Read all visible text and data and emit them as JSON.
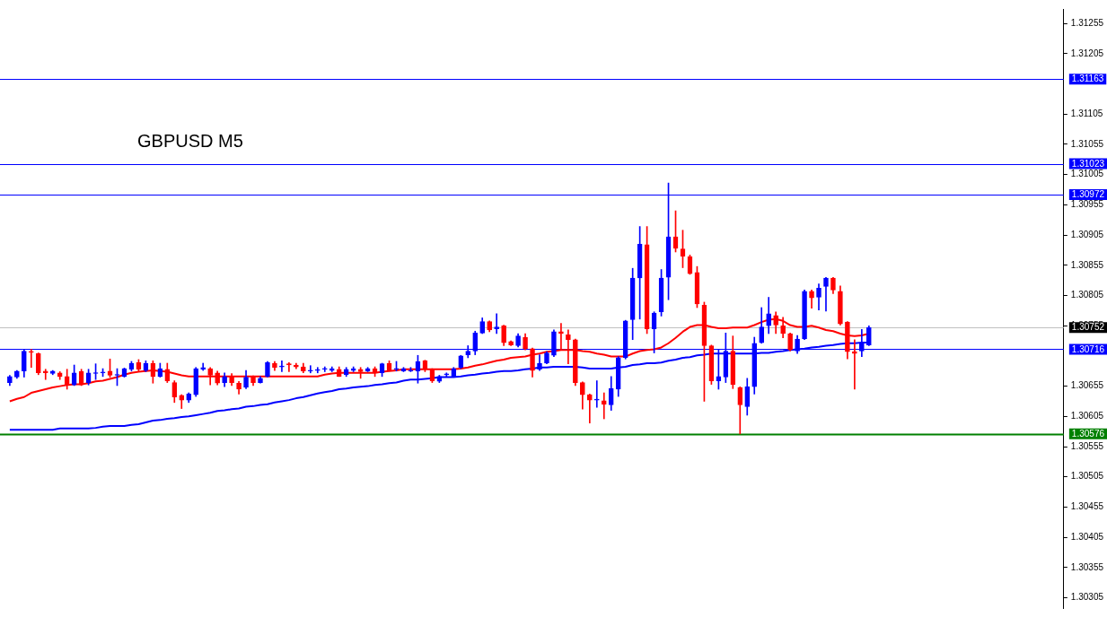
{
  "chart_data": {
    "type": "candlestick",
    "title": "GBPUSD M5",
    "tick_labels": "y",
    "categories": [
      null,
      null,
      null,
      null,
      null,
      null,
      null,
      null,
      null,
      null,
      null,
      null,
      null,
      null,
      null,
      null,
      null,
      null,
      null,
      null,
      null,
      null,
      null,
      null,
      null,
      null,
      null,
      null,
      null,
      null,
      null,
      null,
      null,
      null,
      null,
      null,
      null,
      null,
      null,
      null,
      null,
      null,
      null,
      null,
      null,
      null,
      null,
      null,
      null,
      null,
      null,
      null,
      null,
      null,
      null,
      null,
      null,
      null,
      null,
      null,
      null,
      null,
      null,
      null,
      null,
      null,
      null,
      null,
      null,
      null,
      null,
      null,
      null,
      null,
      null,
      null,
      null,
      null,
      null,
      null,
      null,
      null,
      null,
      null,
      null,
      null,
      null,
      null,
      null,
      null,
      null,
      null,
      null,
      null,
      null,
      null,
      null,
      null,
      null,
      null,
      null,
      null,
      null,
      null,
      null,
      null,
      null,
      null,
      null,
      null,
      null,
      null,
      null,
      null,
      null,
      null,
      null,
      null,
      null,
      null,
      null
    ],
    "ohlc": [
      [
        1.30661,
        1.30673,
        1.30656,
        1.30671
      ],
      [
        1.3067,
        1.30681,
        1.30668,
        1.3068
      ],
      [
        1.3068,
        1.30715,
        1.3067,
        1.30713
      ],
      [
        1.30712,
        1.30716,
        1.30686,
        1.30711
      ],
      [
        1.30709,
        1.3071,
        1.30674,
        1.30677
      ],
      [
        1.3068,
        1.30683,
        1.30666,
        1.30677
      ],
      [
        1.30676,
        1.30681,
        1.30674,
        1.3068
      ],
      [
        1.30677,
        1.30679,
        1.30666,
        1.30671
      ],
      [
        1.30671,
        1.30683,
        1.3065,
        1.30657
      ],
      [
        1.30657,
        1.3069,
        1.30656,
        1.30677
      ],
      [
        1.30679,
        1.30683,
        1.30656,
        1.30657
      ],
      [
        1.30661,
        1.30683,
        1.30657,
        1.30677
      ],
      [
        1.30676,
        1.30692,
        1.30666,
        1.30677
      ],
      [
        1.30677,
        1.30684,
        1.30671,
        1.30678
      ],
      [
        1.3068,
        1.307,
        1.3067,
        1.30673
      ],
      [
        1.30673,
        1.30684,
        1.30656,
        1.30674
      ],
      [
        1.30671,
        1.30685,
        1.3067,
        1.30684
      ],
      [
        1.30683,
        1.30696,
        1.3068,
        1.30693
      ],
      [
        1.30694,
        1.30699,
        1.3068,
        1.30683
      ],
      [
        1.30681,
        1.30697,
        1.30679,
        1.30693
      ],
      [
        1.30693,
        1.30697,
        1.3066,
        1.30671
      ],
      [
        1.30671,
        1.30693,
        1.3067,
        1.30684
      ],
      [
        1.30683,
        1.30693,
        1.30661,
        1.30664
      ],
      [
        1.30661,
        1.30664,
        1.30628,
        1.30637
      ],
      [
        1.3064,
        1.30641,
        1.30618,
        1.30632
      ],
      [
        1.30632,
        1.30644,
        1.30628,
        1.30642
      ],
      [
        1.30641,
        1.30686,
        1.30638,
        1.30684
      ],
      [
        1.30683,
        1.30693,
        1.30681,
        1.30686
      ],
      [
        1.30684,
        1.30686,
        1.30657,
        1.30673
      ],
      [
        1.30677,
        1.3068,
        1.30657,
        1.3066
      ],
      [
        1.30661,
        1.30677,
        1.30654,
        1.30671
      ],
      [
        1.30671,
        1.30676,
        1.30656,
        1.30661
      ],
      [
        1.3066,
        1.30663,
        1.30642,
        1.3065
      ],
      [
        1.30653,
        1.30681,
        1.30651,
        1.3067
      ],
      [
        1.30671,
        1.30672,
        1.30656,
        1.30661
      ],
      [
        1.30661,
        1.30671,
        1.3066,
        1.30668
      ],
      [
        1.30671,
        1.30696,
        1.3067,
        1.30694
      ],
      [
        1.30693,
        1.30696,
        1.30681,
        1.30686
      ],
      [
        1.30687,
        1.30697,
        1.30679,
        1.30688
      ],
      [
        1.30692,
        1.30694,
        1.30679,
        1.3069
      ],
      [
        1.3069,
        1.30693,
        1.30684,
        1.30687
      ],
      [
        1.30687,
        1.30693,
        1.30677,
        1.3068
      ],
      [
        1.3068,
        1.30689,
        1.30677,
        1.30681
      ],
      [
        1.30681,
        1.30686,
        1.30677,
        1.30682
      ],
      [
        1.30683,
        1.30687,
        1.30679,
        1.30684
      ],
      [
        1.30681,
        1.30687,
        1.30679,
        1.30684
      ],
      [
        1.30683,
        1.30687,
        1.30671,
        1.30671
      ],
      [
        1.30674,
        1.30686,
        1.30671,
        1.30683
      ],
      [
        1.30681,
        1.30687,
        1.30679,
        1.30684
      ],
      [
        1.30683,
        1.30686,
        1.30668,
        1.30679
      ],
      [
        1.3068,
        1.30686,
        1.30679,
        1.30684
      ],
      [
        1.30684,
        1.30687,
        1.30671,
        1.30677
      ],
      [
        1.30677,
        1.30693,
        1.30671,
        1.30692
      ],
      [
        1.30693,
        1.30697,
        1.3068,
        1.30681
      ],
      [
        1.30683,
        1.30696,
        1.3068,
        1.30684
      ],
      [
        1.3068,
        1.30686,
        1.30679,
        1.30684
      ],
      [
        1.3068,
        1.30686,
        1.30679,
        1.30681
      ],
      [
        1.3068,
        1.30706,
        1.3066,
        1.30696
      ],
      [
        1.30697,
        1.30698,
        1.30679,
        1.30683
      ],
      [
        1.30683,
        1.30684,
        1.30661,
        1.30664
      ],
      [
        1.30663,
        1.30673,
        1.30661,
        1.30671
      ],
      [
        1.30674,
        1.30677,
        1.30671,
        1.30675
      ],
      [
        1.30671,
        1.30686,
        1.3067,
        1.30684
      ],
      [
        1.30686,
        1.30706,
        1.30684,
        1.30705
      ],
      [
        1.30707,
        1.30722,
        1.30702,
        1.30713
      ],
      [
        1.30713,
        1.30746,
        1.30707,
        1.30743
      ],
      [
        1.30743,
        1.30768,
        1.30742,
        1.30762
      ],
      [
        1.30762,
        1.30763,
        1.30745,
        1.30748
      ],
      [
        1.3075,
        1.30775,
        1.30742,
        1.30753
      ],
      [
        1.30755,
        1.30756,
        1.30722,
        1.30727
      ],
      [
        1.30729,
        1.3073,
        1.30722,
        1.30723
      ],
      [
        1.30722,
        1.30742,
        1.3072,
        1.30738
      ],
      [
        1.30736,
        1.30742,
        1.30715,
        1.30717
      ],
      [
        1.30717,
        1.30718,
        1.3067,
        1.30681
      ],
      [
        1.30683,
        1.30707,
        1.30681,
        1.30693
      ],
      [
        1.30693,
        1.30712,
        1.30692,
        1.3071
      ],
      [
        1.30706,
        1.30748,
        1.30704,
        1.30745
      ],
      [
        1.30745,
        1.30759,
        1.30715,
        1.30742
      ],
      [
        1.3074,
        1.30748,
        1.30692,
        1.30732
      ],
      [
        1.30732,
        1.30733,
        1.30656,
        1.30661
      ],
      [
        1.30661,
        1.30662,
        1.30617,
        1.30641
      ],
      [
        1.30641,
        1.30642,
        1.30594,
        1.30632
      ],
      [
        1.30632,
        1.30664,
        1.3062,
        1.30633
      ],
      [
        1.30631,
        1.30644,
        1.30601,
        1.30625
      ],
      [
        1.30624,
        1.30671,
        1.30615,
        1.30651
      ],
      [
        1.3065,
        1.30704,
        1.30638,
        1.30702
      ],
      [
        1.30702,
        1.30764,
        1.307,
        1.30763
      ],
      [
        1.30765,
        1.3085,
        1.30732,
        1.30834
      ],
      [
        1.30834,
        1.30919,
        1.30766,
        1.3089
      ],
      [
        1.30889,
        1.30919,
        1.30742,
        1.3075
      ],
      [
        1.3075,
        1.30778,
        1.3071,
        1.30776
      ],
      [
        1.30778,
        1.30848,
        1.30771,
        1.30834
      ],
      [
        1.30835,
        1.30991,
        1.30798,
        1.30902
      ],
      [
        1.30902,
        1.30945,
        1.30877,
        1.30883
      ],
      [
        1.30882,
        1.30913,
        1.30851,
        1.3087
      ],
      [
        1.30869,
        1.30872,
        1.3084,
        1.30841
      ],
      [
        1.30843,
        1.30853,
        1.30785,
        1.30791
      ],
      [
        1.30789,
        1.30794,
        1.3063,
        1.30722
      ],
      [
        1.30722,
        1.30723,
        1.30658,
        1.30664
      ],
      [
        1.30664,
        1.30716,
        1.3065,
        1.30671
      ],
      [
        1.3067,
        1.30743,
        1.30661,
        1.30713
      ],
      [
        1.30713,
        1.30738,
        1.30651,
        1.30658
      ],
      [
        1.30653,
        1.30654,
        1.30576,
        1.30624
      ],
      [
        1.30621,
        1.30668,
        1.30607,
        1.30654
      ],
      [
        1.30654,
        1.30736,
        1.30642,
        1.30726
      ],
      [
        1.30727,
        1.30785,
        1.30726,
        1.30753
      ],
      [
        1.30755,
        1.30802,
        1.30742,
        1.30775
      ],
      [
        1.30772,
        1.30778,
        1.30742,
        1.30756
      ],
      [
        1.30755,
        1.30769,
        1.30735,
        1.30742
      ],
      [
        1.30742,
        1.30743,
        1.30713,
        1.30715
      ],
      [
        1.30713,
        1.30739,
        1.30709,
        1.30733
      ],
      [
        1.30733,
        1.30814,
        1.30732,
        1.30812
      ],
      [
        1.30812,
        1.30814,
        1.30784,
        1.30801
      ],
      [
        1.30802,
        1.30824,
        1.30781,
        1.30817
      ],
      [
        1.3082,
        1.30835,
        1.30779,
        1.30834
      ],
      [
        1.30834,
        1.30835,
        1.30808,
        1.30814
      ],
      [
        1.30812,
        1.30821,
        1.30756,
        1.30758
      ],
      [
        1.30761,
        1.30762,
        1.307,
        1.30712
      ],
      [
        1.30712,
        1.30732,
        1.3065,
        1.30709
      ],
      [
        1.30713,
        1.30749,
        1.30704,
        1.30727
      ],
      [
        1.30723,
        1.30755,
        1.30722,
        1.30752
      ]
    ],
    "colors": [
      "#0000ff",
      "#0000ff",
      "#0000ff",
      "#ff0000",
      "#ff0000",
      "#ff0000",
      "#0000ff",
      "#ff0000",
      "#ff0000",
      "#0000ff",
      "#ff0000",
      "#0000ff",
      "#0000ff",
      "#0000ff",
      "#ff0000",
      "#0000ff",
      "#0000ff",
      "#0000ff",
      "#ff0000",
      "#0000ff",
      "#ff0000",
      "#0000ff",
      "#ff0000",
      "#ff0000",
      "#ff0000",
      "#0000ff",
      "#0000ff",
      "#0000ff",
      "#ff0000",
      "#ff0000",
      "#0000ff",
      "#ff0000",
      "#ff0000",
      "#0000ff",
      "#ff0000",
      "#0000ff",
      "#0000ff",
      "#ff0000",
      "#0000ff",
      "#ff0000",
      "#ff0000",
      "#ff0000",
      "#0000ff",
      "#0000ff",
      "#0000ff",
      "#0000ff",
      "#ff0000",
      "#0000ff",
      "#0000ff",
      "#ff0000",
      "#0000ff",
      "#ff0000",
      "#0000ff",
      "#ff0000",
      "#0000ff",
      "#0000ff",
      "#0000ff",
      "#0000ff",
      "#ff0000",
      "#ff0000",
      "#0000ff",
      "#0000ff",
      "#0000ff",
      "#0000ff",
      "#0000ff",
      "#0000ff",
      "#0000ff",
      "#ff0000",
      "#0000ff",
      "#ff0000",
      "#ff0000",
      "#0000ff",
      "#ff0000",
      "#ff0000",
      "#0000ff",
      "#0000ff",
      "#0000ff",
      "#ff0000",
      "#ff0000",
      "#ff0000",
      "#ff0000",
      "#ff0000",
      "#0000ff",
      "#ff0000",
      "#0000ff",
      "#0000ff",
      "#0000ff",
      "#0000ff",
      "#0000ff",
      "#ff0000",
      "#0000ff",
      "#0000ff",
      "#0000ff",
      "#ff0000",
      "#ff0000",
      "#ff0000",
      "#ff0000",
      "#ff0000",
      "#ff0000",
      "#0000ff",
      "#0000ff",
      "#ff0000",
      "#ff0000",
      "#0000ff",
      "#0000ff",
      "#0000ff",
      "#0000ff",
      "#ff0000",
      "#ff0000",
      "#ff0000",
      "#0000ff",
      "#0000ff",
      "#ff0000",
      "#0000ff",
      "#0000ff",
      "#ff0000",
      "#ff0000",
      "#ff0000",
      "#ff0000",
      "#0000ff",
      "#0000ff"
    ],
    "series": [
      {
        "type": "line",
        "color": "#ff0000",
        "values": [
          1.3063,
          1.30634,
          1.30637,
          1.30644,
          1.30647,
          1.3065,
          1.30653,
          1.30655,
          1.30657,
          1.30658,
          1.30658,
          1.3066,
          1.30663,
          1.30664,
          1.30667,
          1.3067,
          1.30674,
          1.30677,
          1.30679,
          1.3068,
          1.30681,
          1.3068,
          1.30679,
          1.30676,
          1.30673,
          1.30671,
          1.30671,
          1.30671,
          1.30671,
          1.30671,
          1.30671,
          1.30671,
          1.30671,
          1.30671,
          1.30671,
          1.30671,
          1.30671,
          1.30671,
          1.30671,
          1.30671,
          1.30671,
          1.30671,
          1.30671,
          1.30671,
          1.30674,
          1.30676,
          1.30677,
          1.30677,
          1.30677,
          1.30677,
          1.30677,
          1.30677,
          1.30679,
          1.3068,
          1.30681,
          1.30683,
          1.30683,
          1.30683,
          1.30683,
          1.30683,
          1.30683,
          1.30683,
          1.30683,
          1.30684,
          1.30686,
          1.30689,
          1.30691,
          1.30694,
          1.30697,
          1.30699,
          1.30702,
          1.30703,
          1.30704,
          1.30707,
          1.30709,
          1.30712,
          1.30713,
          1.30715,
          1.30715,
          1.30715,
          1.30713,
          1.30712,
          1.30709,
          1.30707,
          1.30704,
          1.30704,
          1.30704,
          1.30709,
          1.30713,
          1.30715,
          1.30716,
          1.30719,
          1.30726,
          1.30735,
          1.30745,
          1.30753,
          1.30756,
          1.30756,
          1.30753,
          1.30751,
          1.30751,
          1.30752,
          1.30752,
          1.30752,
          1.30756,
          1.30761,
          1.30765,
          1.30766,
          1.30763,
          1.30756,
          1.30753,
          1.30753,
          1.30755,
          1.30752,
          1.30748,
          1.30746,
          1.30742,
          1.30739,
          1.30738,
          1.30739,
          1.30742
        ]
      },
      {
        "type": "line",
        "color": "#0000ff",
        "values": [
          1.30583,
          1.30583,
          1.30583,
          1.30583,
          1.30583,
          1.30583,
          1.30583,
          1.30585,
          1.30585,
          1.30585,
          1.30585,
          1.30585,
          1.30586,
          1.30588,
          1.30589,
          1.30589,
          1.30589,
          1.30591,
          1.30592,
          1.30595,
          1.30598,
          1.30599,
          1.30601,
          1.30602,
          1.30604,
          1.30605,
          1.30607,
          1.30609,
          1.30611,
          1.30614,
          1.30615,
          1.30617,
          1.30618,
          1.30621,
          1.30622,
          1.30624,
          1.30625,
          1.30628,
          1.3063,
          1.30632,
          1.30635,
          1.30637,
          1.3064,
          1.30643,
          1.30645,
          1.30647,
          1.3065,
          1.30651,
          1.30653,
          1.30654,
          1.30655,
          1.30657,
          1.30658,
          1.3066,
          1.30661,
          1.30664,
          1.30666,
          1.30666,
          1.30667,
          1.30668,
          1.3067,
          1.3067,
          1.3067,
          1.30671,
          1.30673,
          1.30674,
          1.30676,
          1.30677,
          1.30679,
          1.3068,
          1.3068,
          1.30681,
          1.30683,
          1.30684,
          1.30686,
          1.30686,
          1.30687,
          1.30687,
          1.30687,
          1.30687,
          1.30686,
          1.30684,
          1.30684,
          1.30684,
          1.30684,
          1.30686,
          1.30687,
          1.3069,
          1.30691,
          1.30693,
          1.30693,
          1.30694,
          1.30697,
          1.30699,
          1.30702,
          1.30703,
          1.30706,
          1.30707,
          1.30709,
          1.30709,
          1.30709,
          1.30709,
          1.30709,
          1.30709,
          1.30709,
          1.3071,
          1.3071,
          1.30712,
          1.30713,
          1.30715,
          1.30716,
          1.30717,
          1.30719,
          1.3072,
          1.30722,
          1.30723,
          1.30725,
          1.30726,
          1.30726,
          1.30727,
          1.30727
        ]
      }
    ],
    "ylim": [
      1.30288,
      1.31279
    ],
    "yticks": [
      1.30305,
      1.30355,
      1.30405,
      1.30455,
      1.30505,
      1.30555,
      1.30605,
      1.30655,
      1.30755,
      1.30805,
      1.30855,
      1.30905,
      1.30955,
      1.31005,
      1.31055,
      1.31105,
      1.31205,
      1.31255
    ],
    "ref_lines": [
      {
        "axis": "y",
        "value": 1.31163,
        "label": "1.31163",
        "color": "#0000ff"
      },
      {
        "axis": "y",
        "value": 1.31023,
        "label": "1.31023",
        "color": "#0000ff"
      },
      {
        "axis": "y",
        "value": 1.30972,
        "label": "1.30972",
        "color": "#0000ff"
      },
      {
        "axis": "y",
        "value": 1.30752,
        "label": "1.30752",
        "color": "#c0c0c0"
      },
      {
        "axis": "y",
        "value": 1.30716,
        "label": "1.30716",
        "color": "#0000ff"
      },
      {
        "axis": "y",
        "value": 1.30576,
        "label": "1.30576",
        "color": "#008000"
      }
    ]
  }
}
